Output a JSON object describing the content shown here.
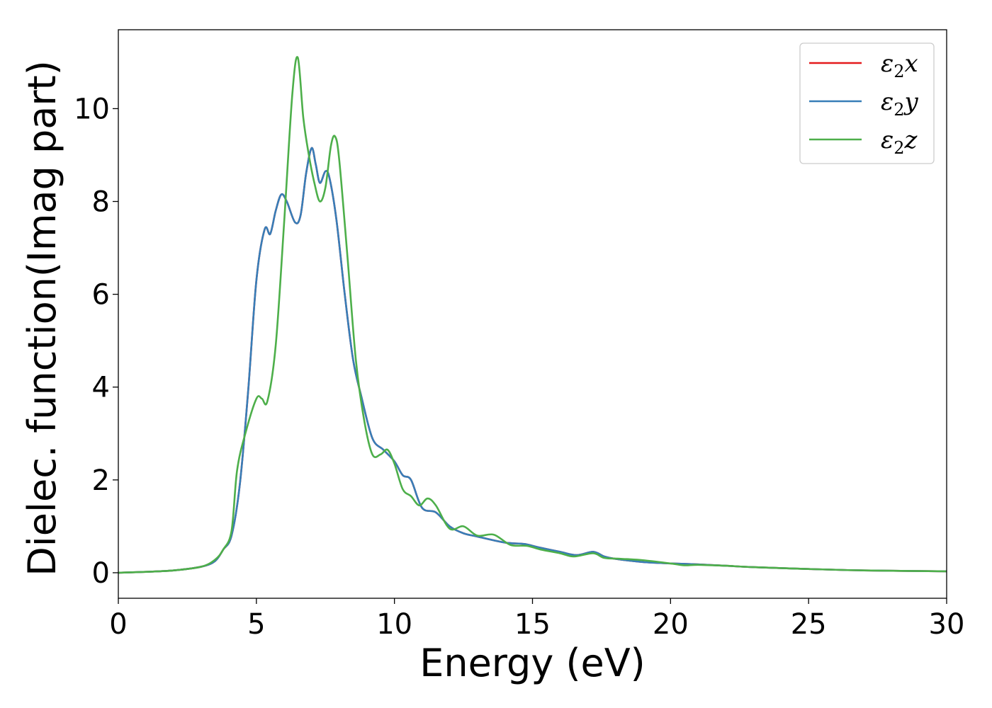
{
  "chart_data": {
    "type": "line",
    "title": "",
    "xlabel": "Energy (eV)",
    "ylabel": "Dielec. function(Imag part)",
    "xlim": [
      0,
      30
    ],
    "ylim": [
      -0.55,
      11.7
    ],
    "xticks": [
      0,
      5,
      10,
      15,
      20,
      25,
      30
    ],
    "yticks": [
      0,
      2,
      4,
      6,
      8,
      10
    ],
    "grid": false,
    "legend_position": "top-right",
    "series": [
      {
        "name": "ε₂x",
        "label": {
          "sym": "ε",
          "sub": "2",
          "axis": "x"
        },
        "color": "#e41a1c",
        "points": [
          [
            0,
            0
          ],
          [
            1,
            0.02
          ],
          [
            2,
            0.05
          ],
          [
            3,
            0.13
          ],
          [
            3.5,
            0.25
          ],
          [
            3.8,
            0.5
          ],
          [
            4.1,
            0.8
          ],
          [
            4.4,
            1.9
          ],
          [
            4.7,
            3.9
          ],
          [
            5.0,
            6.3
          ],
          [
            5.3,
            7.4
          ],
          [
            5.5,
            7.3
          ],
          [
            5.7,
            7.8
          ],
          [
            5.9,
            8.15
          ],
          [
            6.1,
            8.0
          ],
          [
            6.4,
            7.55
          ],
          [
            6.6,
            7.7
          ],
          [
            6.8,
            8.6
          ],
          [
            7.0,
            9.15
          ],
          [
            7.15,
            8.8
          ],
          [
            7.3,
            8.4
          ],
          [
            7.5,
            8.65
          ],
          [
            7.65,
            8.5
          ],
          [
            7.9,
            7.6
          ],
          [
            8.2,
            6.0
          ],
          [
            8.5,
            4.6
          ],
          [
            8.8,
            3.8
          ],
          [
            9.2,
            2.9
          ],
          [
            9.6,
            2.65
          ],
          [
            10.0,
            2.4
          ],
          [
            10.3,
            2.1
          ],
          [
            10.6,
            2.0
          ],
          [
            11.0,
            1.4
          ],
          [
            11.5,
            1.3
          ],
          [
            12.0,
            1.0
          ],
          [
            12.5,
            0.85
          ],
          [
            13.0,
            0.78
          ],
          [
            14.0,
            0.65
          ],
          [
            14.7,
            0.62
          ],
          [
            15.2,
            0.55
          ],
          [
            16.0,
            0.45
          ],
          [
            16.6,
            0.38
          ],
          [
            17.2,
            0.45
          ],
          [
            17.6,
            0.35
          ],
          [
            18.0,
            0.3
          ],
          [
            19.0,
            0.23
          ],
          [
            20.0,
            0.2
          ],
          [
            21.0,
            0.18
          ],
          [
            22.0,
            0.15
          ],
          [
            23.0,
            0.12
          ],
          [
            25.0,
            0.08
          ],
          [
            27.0,
            0.05
          ],
          [
            30.0,
            0.03
          ]
        ]
      },
      {
        "name": "ε₂y",
        "label": {
          "sym": "ε",
          "sub": "2",
          "axis": "y"
        },
        "color": "#377eb8",
        "points": [
          [
            0,
            0
          ],
          [
            1,
            0.02
          ],
          [
            2,
            0.05
          ],
          [
            3,
            0.13
          ],
          [
            3.5,
            0.25
          ],
          [
            3.8,
            0.5
          ],
          [
            4.1,
            0.8
          ],
          [
            4.4,
            1.9
          ],
          [
            4.7,
            3.9
          ],
          [
            5.0,
            6.3
          ],
          [
            5.3,
            7.4
          ],
          [
            5.5,
            7.3
          ],
          [
            5.7,
            7.8
          ],
          [
            5.9,
            8.15
          ],
          [
            6.1,
            8.0
          ],
          [
            6.4,
            7.55
          ],
          [
            6.6,
            7.7
          ],
          [
            6.8,
            8.6
          ],
          [
            7.0,
            9.15
          ],
          [
            7.15,
            8.8
          ],
          [
            7.3,
            8.4
          ],
          [
            7.5,
            8.65
          ],
          [
            7.65,
            8.5
          ],
          [
            7.9,
            7.6
          ],
          [
            8.2,
            6.0
          ],
          [
            8.5,
            4.6
          ],
          [
            8.8,
            3.8
          ],
          [
            9.2,
            2.9
          ],
          [
            9.6,
            2.65
          ],
          [
            10.0,
            2.4
          ],
          [
            10.3,
            2.1
          ],
          [
            10.6,
            2.0
          ],
          [
            11.0,
            1.4
          ],
          [
            11.5,
            1.3
          ],
          [
            12.0,
            1.0
          ],
          [
            12.5,
            0.85
          ],
          [
            13.0,
            0.78
          ],
          [
            14.0,
            0.65
          ],
          [
            14.7,
            0.62
          ],
          [
            15.2,
            0.55
          ],
          [
            16.0,
            0.45
          ],
          [
            16.6,
            0.38
          ],
          [
            17.2,
            0.45
          ],
          [
            17.6,
            0.35
          ],
          [
            18.0,
            0.3
          ],
          [
            19.0,
            0.23
          ],
          [
            20.0,
            0.2
          ],
          [
            21.0,
            0.18
          ],
          [
            22.0,
            0.15
          ],
          [
            23.0,
            0.12
          ],
          [
            25.0,
            0.08
          ],
          [
            27.0,
            0.05
          ],
          [
            30.0,
            0.03
          ]
        ]
      },
      {
        "name": "ε₂z",
        "label": {
          "sym": "ε",
          "sub": "2",
          "axis": "z"
        },
        "color": "#4daf4a",
        "points": [
          [
            0,
            0
          ],
          [
            1,
            0.02
          ],
          [
            2,
            0.05
          ],
          [
            3,
            0.13
          ],
          [
            3.5,
            0.28
          ],
          [
            3.8,
            0.5
          ],
          [
            4.1,
            0.9
          ],
          [
            4.3,
            2.2
          ],
          [
            4.6,
            3.0
          ],
          [
            5.0,
            3.75
          ],
          [
            5.2,
            3.75
          ],
          [
            5.4,
            3.7
          ],
          [
            5.7,
            4.9
          ],
          [
            6.0,
            7.5
          ],
          [
            6.3,
            10.3
          ],
          [
            6.5,
            11.1
          ],
          [
            6.7,
            9.8
          ],
          [
            6.9,
            9.0
          ],
          [
            7.1,
            8.4
          ],
          [
            7.3,
            8.0
          ],
          [
            7.5,
            8.3
          ],
          [
            7.7,
            9.2
          ],
          [
            7.85,
            9.4
          ],
          [
            8.0,
            8.9
          ],
          [
            8.3,
            6.8
          ],
          [
            8.6,
            4.6
          ],
          [
            8.9,
            3.3
          ],
          [
            9.2,
            2.55
          ],
          [
            9.5,
            2.55
          ],
          [
            9.75,
            2.65
          ],
          [
            10.0,
            2.35
          ],
          [
            10.3,
            1.8
          ],
          [
            10.6,
            1.65
          ],
          [
            10.9,
            1.45
          ],
          [
            11.2,
            1.6
          ],
          [
            11.5,
            1.45
          ],
          [
            12.0,
            0.95
          ],
          [
            12.5,
            1.0
          ],
          [
            13.0,
            0.8
          ],
          [
            13.6,
            0.82
          ],
          [
            14.2,
            0.6
          ],
          [
            14.8,
            0.58
          ],
          [
            15.3,
            0.5
          ],
          [
            16.0,
            0.42
          ],
          [
            16.5,
            0.35
          ],
          [
            17.2,
            0.42
          ],
          [
            17.6,
            0.32
          ],
          [
            18.2,
            0.3
          ],
          [
            19.0,
            0.27
          ],
          [
            20.0,
            0.2
          ],
          [
            20.5,
            0.16
          ],
          [
            21.0,
            0.17
          ],
          [
            22.0,
            0.15
          ],
          [
            23.0,
            0.12
          ],
          [
            25.0,
            0.08
          ],
          [
            27.0,
            0.05
          ],
          [
            30.0,
            0.03
          ]
        ]
      }
    ]
  }
}
